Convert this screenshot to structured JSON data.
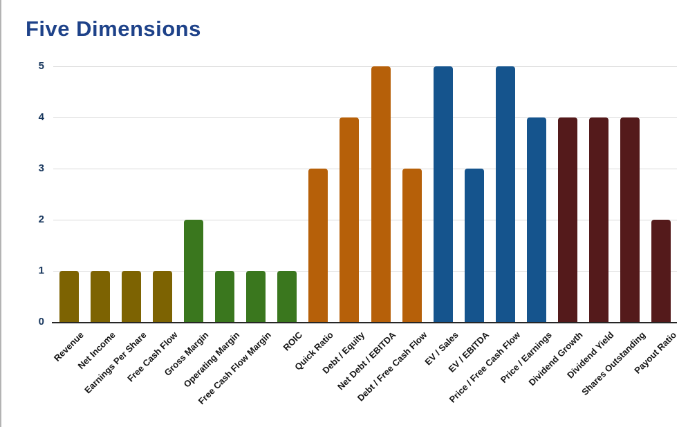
{
  "page": {
    "title": "Five Dimensions"
  },
  "colors": {
    "title": "#1e4289",
    "tick_label": "#17365d",
    "gridline": "#d9d9d9",
    "axis_line": "#262626",
    "page_border": "#b3b3b3",
    "background": "#ffffff",
    "group_growth": "#7d6302",
    "group_margins": "#3a771e",
    "group_debt": "#b66009",
    "group_valuation": "#15548d",
    "group_dividends": "#541a1b"
  },
  "chart_data": {
    "type": "bar",
    "title": "Five Dimensions",
    "categories": [
      "Revenue",
      "Net Income",
      "Earnings Per Share",
      "Free Cash Flow",
      "Gross Margin",
      "Operating Margin",
      "Free Cash Flow Margin",
      "ROIC",
      "Quick Ratio",
      "Debt / Equity",
      "Net Debt / EBITDA",
      "Debt / Free Cash Flow",
      "EV / Sales",
      "EV / EBITDA",
      "Price / Free Cash Flow",
      "Price / Earnings",
      "Dividend Growth",
      "Dividend Yield",
      "Shares Outstanding",
      "Payout Ratio"
    ],
    "values": [
      1,
      1,
      1,
      1,
      2,
      1,
      1,
      1,
      3,
      4,
      5,
      3,
      5,
      3,
      5,
      4,
      4,
      4,
      4,
      2
    ],
    "bar_colors": [
      "#7d6302",
      "#7d6302",
      "#7d6302",
      "#7d6302",
      "#3a771e",
      "#3a771e",
      "#3a771e",
      "#3a771e",
      "#b66009",
      "#b66009",
      "#b66009",
      "#b66009",
      "#15548d",
      "#15548d",
      "#15548d",
      "#15548d",
      "#541a1b",
      "#541a1b",
      "#541a1b",
      "#541a1b"
    ],
    "xlabel": "",
    "ylabel": "",
    "ylim": [
      0,
      5
    ],
    "yticks": [
      "0",
      "1",
      "2",
      "3",
      "4",
      "5"
    ],
    "grid": "horizontal",
    "legend": "none",
    "x_tick_rotation": -45
  }
}
